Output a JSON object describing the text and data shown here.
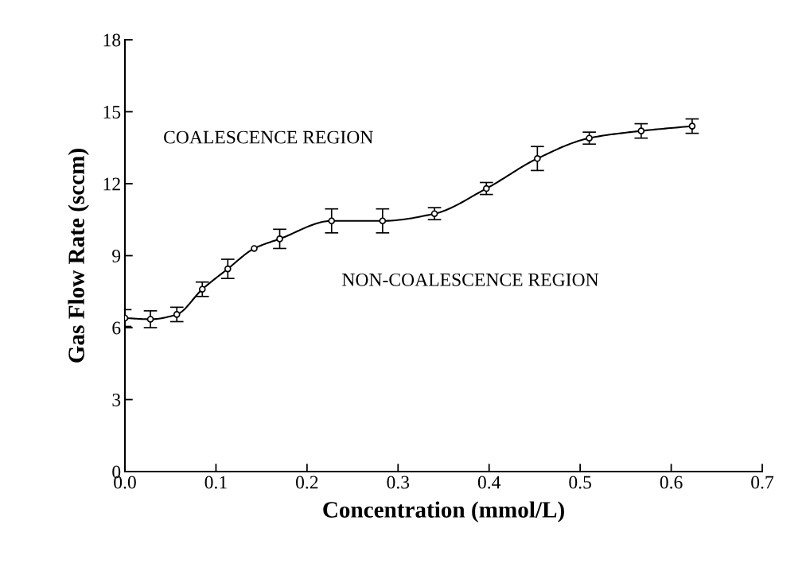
{
  "chart_data": {
    "type": "line",
    "xlabel": "Concentration (mmol/L)",
    "ylabel": "Gas Flow Rate (sccm)",
    "x": [
      0,
      0.028,
      0.057,
      0.085,
      0.113,
      0.142,
      0.17,
      0.227,
      0.283,
      0.34,
      0.397,
      0.453,
      0.51,
      0.567,
      0.623
    ],
    "values": [
      6.4,
      6.35,
      6.55,
      7.6,
      8.45,
      9.3,
      9.7,
      10.45,
      10.45,
      10.75,
      11.8,
      13.05,
      13.9,
      14.2,
      14.4
    ],
    "errors": [
      0.35,
      0.35,
      0.3,
      0.3,
      0.4,
      null,
      0.4,
      0.5,
      0.5,
      0.25,
      0.25,
      0.5,
      0.25,
      0.3,
      0.3
    ],
    "color": "#000000",
    "marker": "circle",
    "line_style": "solid",
    "xlim": [
      0,
      0.7
    ],
    "xticks": [
      {
        "value": 0,
        "label": "0.0"
      },
      0.1,
      0.2,
      0.3,
      0.4,
      0.5,
      0.6,
      0.7
    ],
    "ylim": [
      0,
      18
    ],
    "yticks": [
      0,
      3,
      6,
      9,
      12,
      15,
      18
    ],
    "annotations": [
      "COALESCENCE REGION",
      "NON-COALESCENCE REGION"
    ]
  }
}
